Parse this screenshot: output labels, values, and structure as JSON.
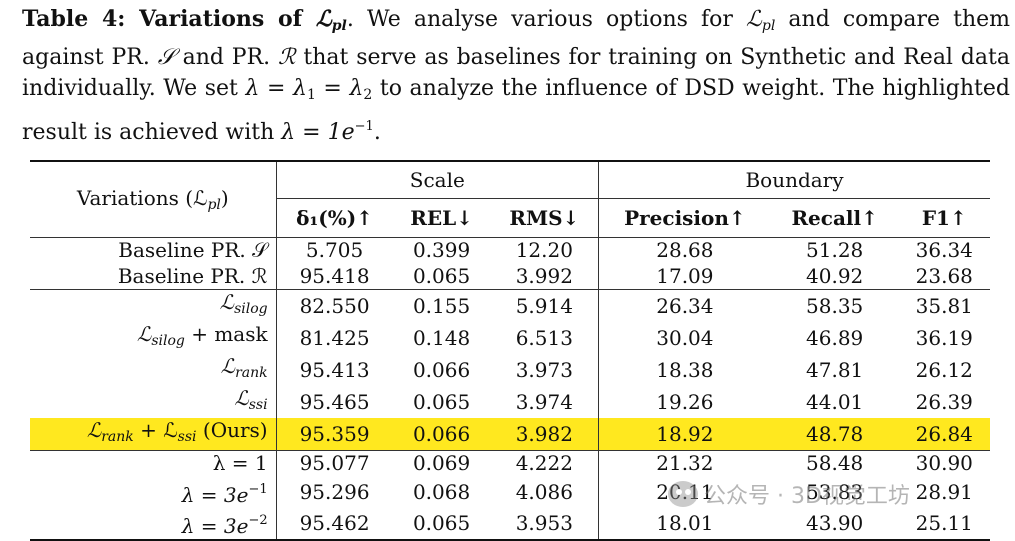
{
  "caption": {
    "label": "Table 4: Variations of",
    "label_sym": "ℒ",
    "label_sub": "pl",
    "text_1": ". We analyse various options for",
    "sym_1": "ℒ",
    "sub_1": "pl",
    "text_2": "and compare them against PR.",
    "sym_S": "𝒮",
    "text_3": "and PR.",
    "sym_R": "ℛ",
    "text_4": "that serve as baselines for training on Synthetic and Real data individually. We set",
    "eq_1": "λ = λ",
    "eq_1_sub": "1",
    "eq_2": " = λ",
    "eq_2_sub": "2",
    "text_5": "to analyze the influence of DSD weight. The highlighted result is achieved with",
    "eq_3": "λ = 1e",
    "eq_3_sup": "−1",
    "text_6": "."
  },
  "table": {
    "variations_header": "Variations (ℒ",
    "variations_header_sub": "pl",
    "variations_header_close": ")",
    "group_scale": "Scale",
    "group_boundary": "Boundary",
    "columns": [
      "δ₁(%)↑",
      "REL↓",
      "RMS↓",
      "Precision↑",
      "Recall↑",
      "F1↑"
    ],
    "rows": [
      {
        "label": "Baseline PR. 𝒮",
        "values": [
          "5.705",
          "0.399",
          "12.20",
          "28.68",
          "51.28",
          "36.34"
        ]
      },
      {
        "label": "Baseline PR. ℛ",
        "values": [
          "95.418",
          "0.065",
          "3.992",
          "17.09",
          "40.92",
          "23.68"
        ]
      },
      {
        "label": "ℒ",
        "label_sub": "silog",
        "label_rest": "",
        "values": [
          "82.550",
          "0.155",
          "5.914",
          "26.34",
          "58.35",
          "35.81"
        ]
      },
      {
        "label": "ℒ",
        "label_sub": "silog",
        "label_rest": " + mask",
        "values": [
          "81.425",
          "0.148",
          "6.513",
          "30.04",
          "46.89",
          "36.19"
        ]
      },
      {
        "label": "ℒ",
        "label_sub": "rank",
        "label_rest": "",
        "values": [
          "95.413",
          "0.066",
          "3.973",
          "18.38",
          "47.81",
          "26.12"
        ]
      },
      {
        "label": "ℒ",
        "label_sub": "ssi",
        "label_rest": "",
        "values": [
          "95.465",
          "0.065",
          "3.974",
          "19.26",
          "44.01",
          "26.39"
        ]
      },
      {
        "label": "ℒ",
        "label_sub": "rank",
        "label_mid": " + ℒ",
        "label_sub2": "ssi",
        "label_rest": " (Ours)",
        "highlight": true,
        "values": [
          "95.359",
          "0.066",
          "3.982",
          "18.92",
          "48.78",
          "26.84"
        ]
      },
      {
        "label": "λ = 1",
        "values": [
          "95.077",
          "0.069",
          "4.222",
          "21.32",
          "58.48",
          "30.90"
        ]
      },
      {
        "label": "λ = 3e",
        "label_sup": "−1",
        "values": [
          "95.296",
          "0.068",
          "4.086",
          "20.11",
          "53.83",
          "28.91"
        ]
      },
      {
        "label": "λ = 3e",
        "label_sup": "−2",
        "values": [
          "95.462",
          "0.065",
          "3.953",
          "18.01",
          "43.90",
          "25.11"
        ]
      }
    ],
    "highlight_color": "#ffe81f"
  },
  "watermark": {
    "icon": "wechat-icon",
    "text": "公众号 · 3D视觉工坊"
  }
}
